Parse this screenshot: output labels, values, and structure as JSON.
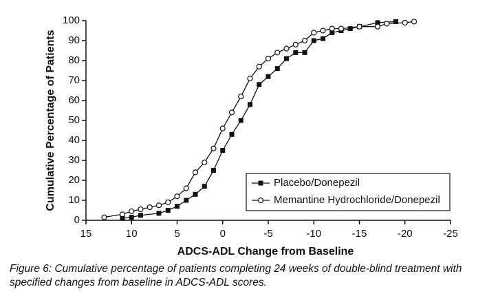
{
  "chart_data": {
    "type": "line",
    "xlabel": "ADCS-ADL Change from Baseline",
    "ylabel": "Cumulative Percentage of Patients",
    "caption": "Figure 6: Cumulative percentage of patients completing 24 weeks of double-blind treatment with specified changes from baseline in ADCS-ADL scores.",
    "xlim": [
      15,
      -25
    ],
    "ylim": [
      0,
      100
    ],
    "xticks": [
      15,
      10,
      5,
      0,
      -5,
      -10,
      -15,
      -20,
      -25
    ],
    "yticks": [
      0,
      10,
      20,
      30,
      40,
      50,
      60,
      70,
      80,
      90,
      100
    ],
    "legend": "lower right",
    "series": [
      {
        "name": "Placebo/Donepezil",
        "color": "#111111",
        "marker": "square",
        "x": [
          11,
          10,
          9,
          7,
          6,
          5,
          4,
          3,
          2,
          1,
          0,
          -1,
          -2,
          -3,
          -4,
          -5,
          -6,
          -7,
          -8,
          -9,
          -10,
          -11,
          -12,
          -13,
          -14,
          -15,
          -17,
          -19
        ],
        "values": [
          1,
          1.5,
          2.5,
          3.5,
          5,
          7,
          10,
          13,
          17,
          25,
          35,
          43,
          50,
          58,
          68,
          72,
          76,
          81,
          84,
          84,
          90,
          91,
          94,
          95,
          96,
          97,
          99,
          99.5
        ]
      },
      {
        "name": "Memantine Hydrochloride/Donepezil",
        "color": "#111111",
        "marker": "circle",
        "x": [
          13,
          11,
          10,
          9,
          8,
          7,
          6,
          5,
          4,
          3,
          2,
          1,
          0,
          -1,
          -2,
          -3,
          -4,
          -5,
          -6,
          -7,
          -8,
          -9,
          -10,
          -11,
          -12,
          -13,
          -15,
          -17,
          -18,
          -20,
          -21
        ],
        "values": [
          1.5,
          3,
          4.5,
          5.5,
          6.5,
          7.5,
          9,
          12,
          16,
          24,
          29,
          36,
          46,
          54,
          62,
          71,
          77,
          81,
          84,
          86,
          88,
          90,
          94,
          95,
          96,
          96,
          97,
          97,
          98.5,
          99,
          99.5
        ]
      }
    ]
  }
}
